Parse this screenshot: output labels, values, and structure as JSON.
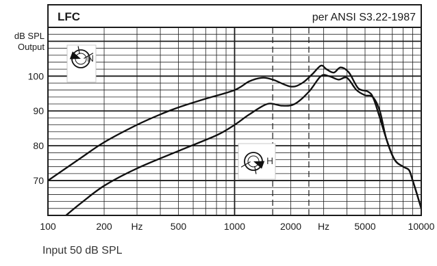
{
  "chart_data": {
    "type": "line",
    "title": "LFC",
    "subtitle": "per ANSI S3.22-1987",
    "ylabel": [
      "dB SPL",
      "Output"
    ],
    "xlabel": "Hz",
    "x_scale": "log",
    "xlim": [
      100,
      10000
    ],
    "ylim": [
      60,
      114
    ],
    "y_ticks": [
      70,
      80,
      90,
      100
    ],
    "x_tick_labels": [
      {
        "value": 100,
        "label": "100"
      },
      {
        "value": 200,
        "label": "200"
      },
      {
        "value": 300,
        "label": "Hz"
      },
      {
        "value": 500,
        "label": "500"
      },
      {
        "value": 1000,
        "label": "1000"
      },
      {
        "value": 2000,
        "label": "2000"
      },
      {
        "value": 3000,
        "label": "Hz"
      },
      {
        "value": 5000,
        "label": "5000"
      },
      {
        "value": 10000,
        "label": "10000"
      }
    ],
    "dashed_verticals": [
      1600,
      2500
    ],
    "grid": true,
    "series": [
      {
        "marker": "N",
        "points": [
          [
            100,
            70
          ],
          [
            150,
            76.5
          ],
          [
            200,
            81
          ],
          [
            300,
            86
          ],
          [
            400,
            89
          ],
          [
            500,
            91
          ],
          [
            700,
            93.5
          ],
          [
            1000,
            96
          ],
          [
            1200,
            98.5
          ],
          [
            1400,
            99.5
          ],
          [
            1600,
            99
          ],
          [
            2000,
            97
          ],
          [
            2300,
            98
          ],
          [
            2600,
            100.5
          ],
          [
            2900,
            103
          ],
          [
            3100,
            102
          ],
          [
            3400,
            101
          ],
          [
            3700,
            102.5
          ],
          [
            4100,
            101
          ],
          [
            4600,
            96.5
          ],
          [
            5200,
            95.5
          ],
          [
            5600,
            93
          ],
          [
            6500,
            82
          ],
          [
            7200,
            76
          ],
          [
            8000,
            74
          ],
          [
            8600,
            73
          ],
          [
            9000,
            70
          ],
          [
            9500,
            66
          ],
          [
            10000,
            62
          ]
        ]
      },
      {
        "marker": "H",
        "points": [
          [
            125,
            60
          ],
          [
            150,
            63.5
          ],
          [
            200,
            68.5
          ],
          [
            300,
            73.5
          ],
          [
            500,
            78.5
          ],
          [
            800,
            83
          ],
          [
            1000,
            86
          ],
          [
            1200,
            89
          ],
          [
            1500,
            92
          ],
          [
            1800,
            91.5
          ],
          [
            2100,
            92
          ],
          [
            2500,
            95.5
          ],
          [
            2900,
            100
          ],
          [
            3200,
            100
          ],
          [
            3600,
            99
          ],
          [
            4000,
            99.5
          ],
          [
            4500,
            96
          ],
          [
            5000,
            94.5
          ],
          [
            5500,
            94
          ],
          [
            6000,
            90
          ],
          [
            6500,
            82
          ],
          [
            7200,
            76
          ],
          [
            8000,
            74
          ],
          [
            8600,
            73
          ],
          [
            9000,
            70
          ],
          [
            9500,
            66
          ],
          [
            10000,
            62
          ]
        ]
      }
    ]
  },
  "footer": {
    "input_label": "Input 50 dB SPL"
  }
}
